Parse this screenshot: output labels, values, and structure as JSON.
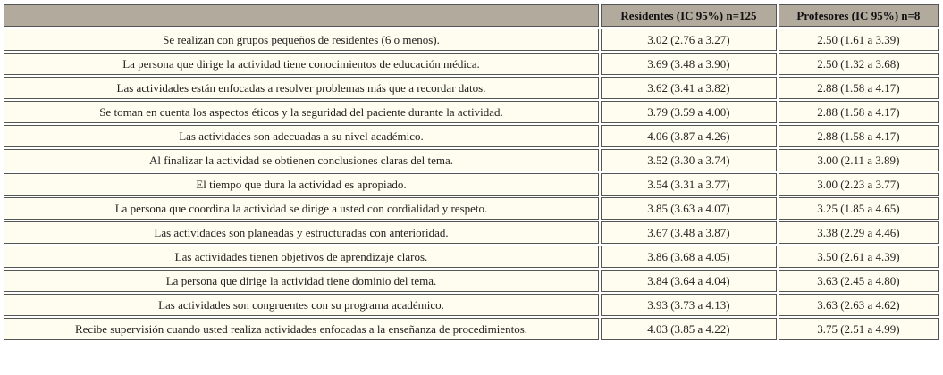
{
  "table": {
    "columns": [
      "Residentes (IC 95%) n=125",
      "Profesores (IC 95%) n=8"
    ],
    "rows": [
      [
        "Se realizan con grupos pequeños de residentes (6 o menos).",
        "3.02 (2.76 a 3.27)",
        "2.50 (1.61 a 3.39)"
      ],
      [
        "La persona que dirige la actividad tiene conocimientos de educación médica.",
        "3.69 (3.48 a 3.90)",
        "2.50 (1.32 a 3.68)"
      ],
      [
        "Las actividades están enfocadas a resolver problemas más que a recordar datos.",
        "3.62 (3.41 a 3.82)",
        "2.88 (1.58 a 4.17)"
      ],
      [
        "Se toman en cuenta los aspectos éticos y la seguridad del paciente durante la actividad.",
        "3.79 (3.59 a 4.00)",
        "2.88 (1.58 a 4.17)"
      ],
      [
        "Las actividades son adecuadas a su nivel académico.",
        "4.06 (3.87 a 4.26)",
        "2.88 (1.58 a 4.17)"
      ],
      [
        "Al finalizar la actividad se obtienen conclusiones claras del tema.",
        "3.52 (3.30 a 3.74)",
        "3.00 (2.11 a 3.89)"
      ],
      [
        "El tiempo que dura la actividad es apropiado.",
        "3.54 (3.31 a 3.77)",
        "3.00 (2.23 a 3.77)"
      ],
      [
        "La persona que coordina la actividad se dirige a usted con cordialidad y respeto.",
        "3.85 (3.63 a 4.07)",
        "3.25 (1.85 a 4.65)"
      ],
      [
        "Las actividades son planeadas y estructuradas con anterioridad.",
        "3.67 (3.48 a 3.87)",
        "3.38 (2.29 a 4.46)"
      ],
      [
        "Las actividades tienen objetivos de aprendizaje claros.",
        "3.86 (3.68 a 4.05)",
        "3.50 (2.61 a 4.39)"
      ],
      [
        "La persona que dirige la actividad tiene dominio del tema.",
        "3.84 (3.64 a 4.04)",
        "3.63 (2.45 a 4.80)"
      ],
      [
        "Las actividades son congruentes con su programa académico.",
        "3.93 (3.73 a 4.13)",
        "3.63 (2.63 a 4.62)"
      ],
      [
        "Recibe supervisión cuando usted realiza actividades enfocadas a la enseñanza de procedimientos.",
        "4.03 (3.85 a 4.22)",
        "3.75 (2.51 a 4.99)"
      ]
    ]
  }
}
